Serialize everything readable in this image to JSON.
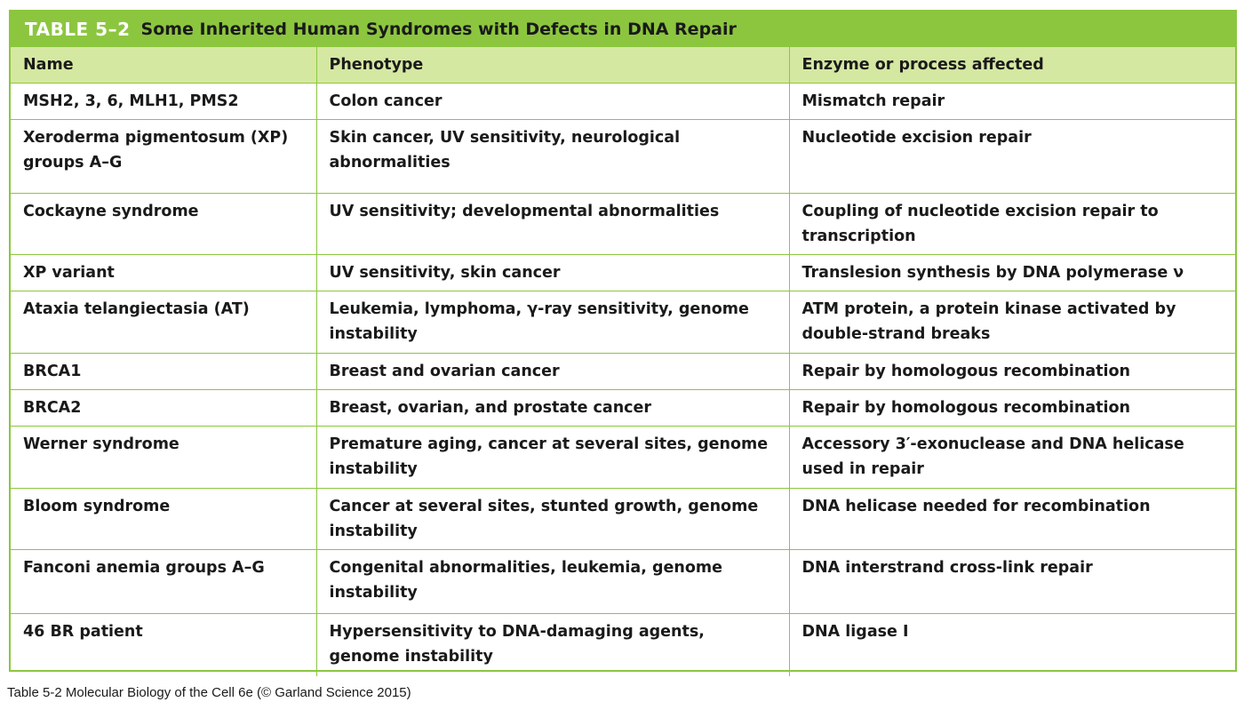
{
  "table": {
    "label": "TABLE 5–2",
    "title": "Some Inherited Human Syndromes with Defects in DNA Repair",
    "headers": [
      "Name",
      "Phenotype",
      "Enzyme or process affected"
    ],
    "rows": [
      [
        "MSH2, 3, 6, MLH1, PMS2",
        "Colon cancer",
        "Mismatch repair"
      ],
      [
        "Xeroderma pigmentosum (XP) groups A–G",
        "Skin cancer, UV sensitivity, neurological abnormalities",
        "Nucleotide excision repair"
      ],
      [
        "Cockayne syndrome",
        "UV sensitivity; developmental abnormalities",
        "Coupling of nucleotide excision repair to transcription"
      ],
      [
        "XP variant",
        "UV sensitivity, skin cancer",
        "Translesion synthesis by DNA polymerase ν"
      ],
      [
        "Ataxia telangiectasia (AT)",
        "Leukemia, lymphoma, γ-ray sensitivity, genome instability",
        "ATM protein, a protein kinase activated by double-strand breaks"
      ],
      [
        "BRCA1",
        "Breast and ovarian cancer",
        "Repair by homologous recombination"
      ],
      [
        "BRCA2",
        "Breast, ovarian, and prostate cancer",
        "Repair by homologous recombination"
      ],
      [
        "Werner syndrome",
        "Premature aging, cancer at several sites, genome instability",
        "Accessory 3′-exonuclease and DNA helicase used in repair"
      ],
      [
        "Bloom syndrome",
        "Cancer at several sites, stunted growth, genome instability",
        "DNA helicase needed for recombination"
      ],
      [
        "Fanconi anemia groups A–G",
        "Congenital abnormalities, leukemia, genome instability",
        "DNA interstrand cross-link repair"
      ],
      [
        "46 BR patient",
        "Hypersensitivity to DNA-damaging agents, genome instability",
        "DNA ligase I"
      ]
    ]
  },
  "caption": "Table 5-2  Molecular Biology of the Cell 6e (© Garland Science 2015)",
  "colors": {
    "accent_green": "#8cc63f",
    "header_row_bg": "#d5e8a2",
    "title_label_text": "#ffffff"
  }
}
